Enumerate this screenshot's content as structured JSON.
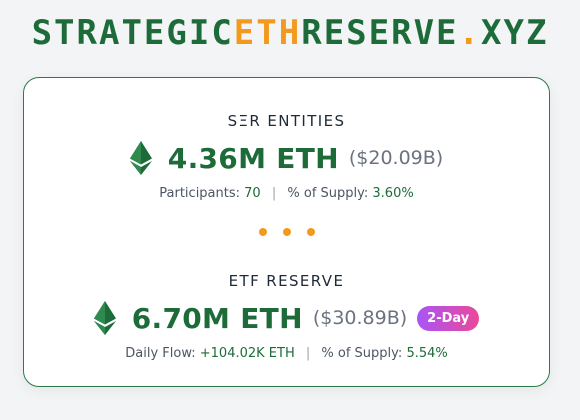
{
  "logo": {
    "part1": "STRATEGIC",
    "part2": "ETH",
    "part3": "RESERVE",
    "part4": ".",
    "part5": "XYZ"
  },
  "ser": {
    "title": "SΞR ENTITIES",
    "amount": "4.36M ETH",
    "usd": "($20.09B)",
    "stat1_label": "Participants:",
    "stat1_value": "70",
    "stat2_label": "% of Supply:",
    "stat2_value": "3.60%"
  },
  "etf": {
    "title": "ETF RESERVE",
    "amount": "6.70M ETH",
    "usd": "($30.89B)",
    "badge": "2-Day",
    "stat1_label": "Daily Flow:",
    "stat1_value": "+104.02K ETH",
    "stat2_label": "% of Supply:",
    "stat2_value": "5.54%"
  },
  "separator": "|",
  "colors": {
    "brand_green": "#1c6b39",
    "accent_orange": "#f39a1d",
    "badge_gradient_start": "#a855f7",
    "badge_gradient_end": "#ec4899"
  },
  "icons": {
    "eth": "ethereum-diamond-icon"
  }
}
